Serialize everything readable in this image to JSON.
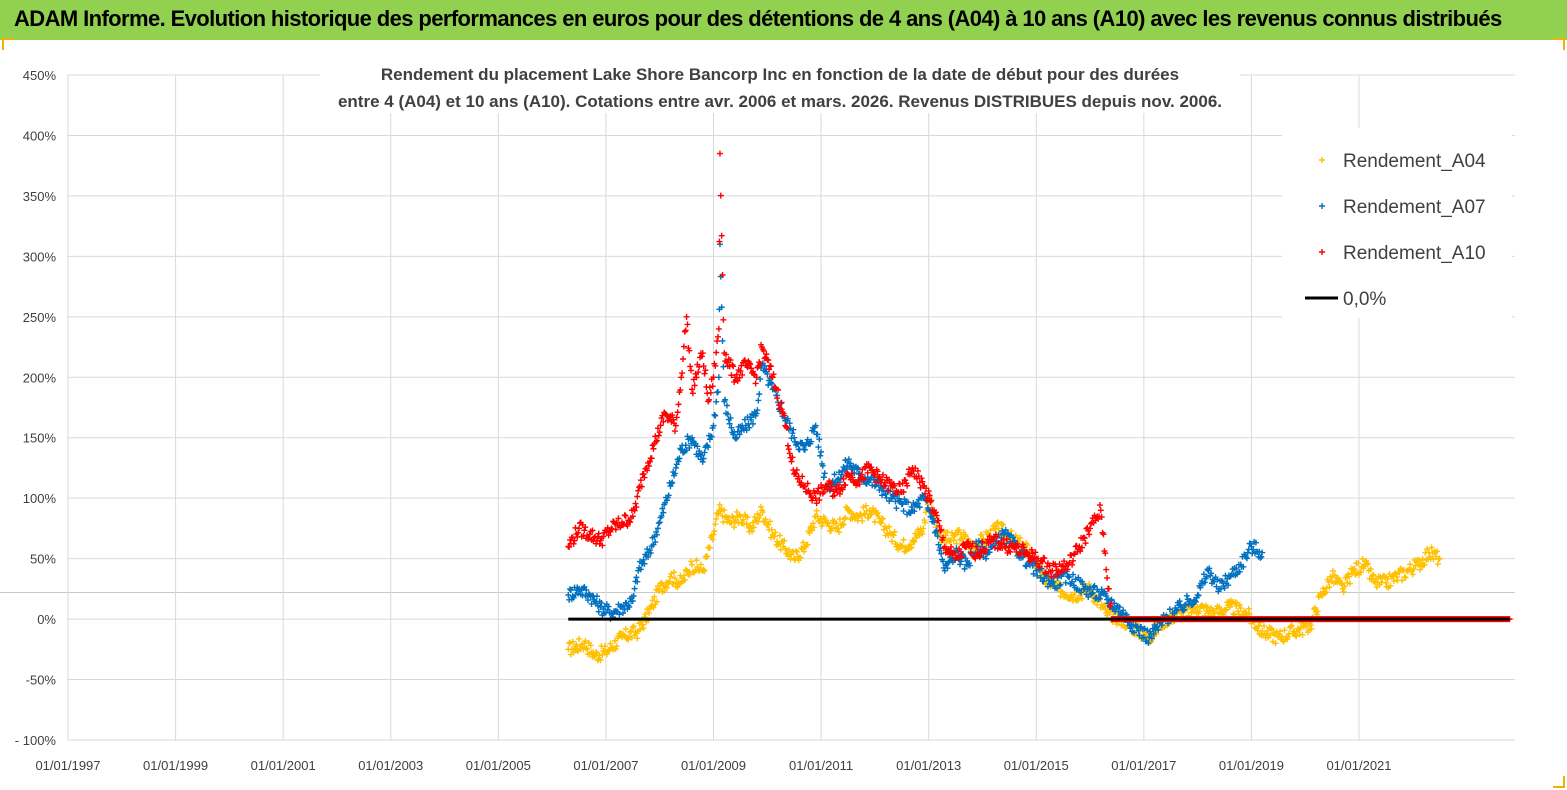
{
  "banner": {
    "title": "ADAM Informe. Evolution historique des performances en euros pour des détentions de 4 ans (A04) à 10 ans (A10) avec les revenus connus distribués"
  },
  "colors": {
    "banner_bg": "#92d050",
    "A04": "#ffc000",
    "A07": "#0070c0",
    "A10": "#ff0000",
    "zero": "#000000",
    "grid": "#d9d9d9"
  },
  "chart_data": {
    "type": "scatter",
    "title_line1": "Rendement du placement Lake Shore Bancorp Inc en fonction de la date de début pour des durées",
    "title_line2": "entre 4 (A04) et 10 ans (A10). Cotations entre avr. 2006 et mars. 2026. Revenus DISTRIBUES depuis nov. 2006.",
    "x_tick_labels": [
      "01/01/1997",
      "01/01/1999",
      "01/01/2001",
      "01/01/2003",
      "01/01/2005",
      "01/01/2007",
      "01/01/2009",
      "01/01/2011",
      "01/01/2013",
      "01/01/2015",
      "01/01/2017",
      "01/01/2019",
      "01/01/2021"
    ],
    "xlim": [
      1997.0,
      2023.9
    ],
    "y_tick_labels": [
      "450%",
      "400%",
      "350%",
      "300%",
      "250%",
      "200%",
      "150%",
      "100%",
      "50%",
      "0%",
      "-50%",
      "- 100%"
    ],
    "ylim": [
      -100,
      450
    ],
    "legend": [
      "Rendement_A04",
      "Rendement_A07",
      "Rendement_A10",
      "0,0%"
    ],
    "series": [
      {
        "name": "Rendement_A04",
        "color": "#ffc000",
        "points": [
          [
            2006.3,
            -25
          ],
          [
            2006.6,
            -20
          ],
          [
            2006.8,
            -30
          ],
          [
            2007.0,
            -27
          ],
          [
            2007.3,
            -15
          ],
          [
            2007.6,
            -10
          ],
          [
            2007.8,
            5
          ],
          [
            2008.0,
            25
          ],
          [
            2008.2,
            35
          ],
          [
            2008.4,
            30
          ],
          [
            2008.6,
            45
          ],
          [
            2008.8,
            40
          ],
          [
            2009.0,
            70
          ],
          [
            2009.1,
            90
          ],
          [
            2009.3,
            80
          ],
          [
            2009.5,
            85
          ],
          [
            2009.7,
            75
          ],
          [
            2009.9,
            90
          ],
          [
            2010.1,
            70
          ],
          [
            2010.3,
            60
          ],
          [
            2010.5,
            50
          ],
          [
            2010.7,
            60
          ],
          [
            2010.9,
            85
          ],
          [
            2011.1,
            80
          ],
          [
            2011.3,
            75
          ],
          [
            2011.5,
            90
          ],
          [
            2011.7,
            85
          ],
          [
            2011.9,
            90
          ],
          [
            2012.1,
            80
          ],
          [
            2012.3,
            70
          ],
          [
            2012.5,
            60
          ],
          [
            2012.7,
            65
          ],
          [
            2012.9,
            75
          ],
          [
            2013.0,
            100
          ],
          [
            2013.2,
            70
          ],
          [
            2013.4,
            65
          ],
          [
            2013.6,
            70
          ],
          [
            2013.8,
            60
          ],
          [
            2014.0,
            65
          ],
          [
            2014.3,
            75
          ],
          [
            2014.6,
            65
          ],
          [
            2014.9,
            55
          ],
          [
            2015.1,
            35
          ],
          [
            2015.4,
            25
          ],
          [
            2015.7,
            20
          ],
          [
            2016.0,
            25
          ],
          [
            2016.3,
            5
          ],
          [
            2016.6,
            0
          ],
          [
            2016.9,
            -10
          ],
          [
            2017.1,
            -15
          ],
          [
            2017.4,
            0
          ],
          [
            2017.7,
            5
          ],
          [
            2018.0,
            10
          ],
          [
            2018.3,
            5
          ],
          [
            2018.6,
            10
          ],
          [
            2018.9,
            5
          ],
          [
            2019.2,
            -10
          ],
          [
            2019.5,
            -15
          ],
          [
            2019.8,
            -10
          ],
          [
            2020.1,
            -5
          ],
          [
            2020.3,
            20
          ],
          [
            2020.5,
            35
          ],
          [
            2020.7,
            25
          ],
          [
            2020.9,
            40
          ],
          [
            2021.1,
            45
          ],
          [
            2021.3,
            30
          ],
          [
            2021.5,
            30
          ],
          [
            2021.7,
            35
          ],
          [
            2021.9,
            40
          ],
          [
            2022.1,
            45
          ],
          [
            2022.3,
            55
          ],
          [
            2022.5,
            50
          ]
        ]
      },
      {
        "name": "Rendement_A07",
        "color": "#0070c0",
        "points": [
          [
            2006.3,
            20
          ],
          [
            2006.5,
            25
          ],
          [
            2006.7,
            20
          ],
          [
            2006.9,
            10
          ],
          [
            2007.1,
            5
          ],
          [
            2007.3,
            10
          ],
          [
            2007.5,
            15
          ],
          [
            2007.6,
            40
          ],
          [
            2007.8,
            55
          ],
          [
            2008.0,
            80
          ],
          [
            2008.2,
            110
          ],
          [
            2008.4,
            140
          ],
          [
            2008.6,
            150
          ],
          [
            2008.8,
            130
          ],
          [
            2009.0,
            160
          ],
          [
            2009.1,
            200
          ],
          [
            2009.12,
            310
          ],
          [
            2009.2,
            180
          ],
          [
            2009.4,
            150
          ],
          [
            2009.6,
            160
          ],
          [
            2009.8,
            170
          ],
          [
            2009.9,
            210
          ],
          [
            2010.1,
            190
          ],
          [
            2010.3,
            170
          ],
          [
            2010.5,
            150
          ],
          [
            2010.7,
            140
          ],
          [
            2010.9,
            160
          ],
          [
            2011.1,
            110
          ],
          [
            2011.3,
            115
          ],
          [
            2011.5,
            130
          ],
          [
            2011.7,
            120
          ],
          [
            2011.9,
            115
          ],
          [
            2012.1,
            110
          ],
          [
            2012.3,
            100
          ],
          [
            2012.5,
            95
          ],
          [
            2012.7,
            90
          ],
          [
            2012.9,
            100
          ],
          [
            2013.1,
            80
          ],
          [
            2013.3,
            40
          ],
          [
            2013.5,
            55
          ],
          [
            2013.7,
            45
          ],
          [
            2013.9,
            60
          ],
          [
            2014.1,
            55
          ],
          [
            2014.4,
            70
          ],
          [
            2014.7,
            55
          ],
          [
            2015.0,
            40
          ],
          [
            2015.3,
            30
          ],
          [
            2015.6,
            35
          ],
          [
            2015.9,
            25
          ],
          [
            2016.2,
            20
          ],
          [
            2016.5,
            10
          ],
          [
            2016.8,
            -5
          ],
          [
            2017.1,
            -15
          ],
          [
            2017.4,
            0
          ],
          [
            2017.7,
            10
          ],
          [
            2018.0,
            20
          ],
          [
            2018.2,
            40
          ],
          [
            2018.4,
            25
          ],
          [
            2018.6,
            35
          ],
          [
            2018.8,
            45
          ],
          [
            2019.0,
            60
          ],
          [
            2019.2,
            55
          ]
        ]
      },
      {
        "name": "Rendement_A10",
        "color": "#ff0000",
        "points": [
          [
            2006.3,
            60
          ],
          [
            2006.5,
            75
          ],
          [
            2006.7,
            70
          ],
          [
            2006.9,
            65
          ],
          [
            2007.1,
            75
          ],
          [
            2007.3,
            80
          ],
          [
            2007.5,
            85
          ],
          [
            2007.7,
            120
          ],
          [
            2007.9,
            145
          ],
          [
            2008.1,
            170
          ],
          [
            2008.3,
            160
          ],
          [
            2008.4,
            200
          ],
          [
            2008.5,
            250
          ],
          [
            2008.6,
            190
          ],
          [
            2008.8,
            220
          ],
          [
            2008.9,
            180
          ],
          [
            2009.0,
            200
          ],
          [
            2009.1,
            240
          ],
          [
            2009.12,
            385
          ],
          [
            2009.2,
            220
          ],
          [
            2009.4,
            200
          ],
          [
            2009.6,
            210
          ],
          [
            2009.8,
            200
          ],
          [
            2009.9,
            225
          ],
          [
            2010.1,
            200
          ],
          [
            2010.3,
            170
          ],
          [
            2010.5,
            120
          ],
          [
            2010.7,
            110
          ],
          [
            2010.9,
            100
          ],
          [
            2011.1,
            110
          ],
          [
            2011.3,
            105
          ],
          [
            2011.5,
            120
          ],
          [
            2011.7,
            115
          ],
          [
            2011.9,
            125
          ],
          [
            2012.1,
            115
          ],
          [
            2012.3,
            110
          ],
          [
            2012.5,
            105
          ],
          [
            2012.7,
            125
          ],
          [
            2012.9,
            110
          ],
          [
            2013.1,
            90
          ],
          [
            2013.3,
            60
          ],
          [
            2013.5,
            50
          ],
          [
            2013.7,
            60
          ],
          [
            2013.9,
            55
          ],
          [
            2014.2,
            65
          ],
          [
            2014.5,
            60
          ],
          [
            2014.8,
            55
          ],
          [
            2015.0,
            50
          ],
          [
            2015.3,
            40
          ],
          [
            2015.6,
            45
          ],
          [
            2015.8,
            60
          ],
          [
            2016.0,
            75
          ],
          [
            2016.2,
            90
          ],
          [
            2016.4,
            0
          ],
          [
            2017.0,
            0
          ],
          [
            2017.5,
            0
          ],
          [
            2018.0,
            0
          ],
          [
            2018.5,
            0
          ],
          [
            2019.0,
            0
          ],
          [
            2019.5,
            0
          ],
          [
            2020.0,
            0
          ],
          [
            2020.5,
            0
          ],
          [
            2021.0,
            0
          ],
          [
            2021.5,
            0
          ],
          [
            2022.0,
            0
          ],
          [
            2022.5,
            0
          ],
          [
            2023.0,
            0
          ],
          [
            2023.8,
            0
          ]
        ]
      },
      {
        "name": "0,0%",
        "color": "#000000",
        "points": [
          [
            2006.3,
            0
          ],
          [
            2023.8,
            0
          ]
        ]
      }
    ]
  }
}
